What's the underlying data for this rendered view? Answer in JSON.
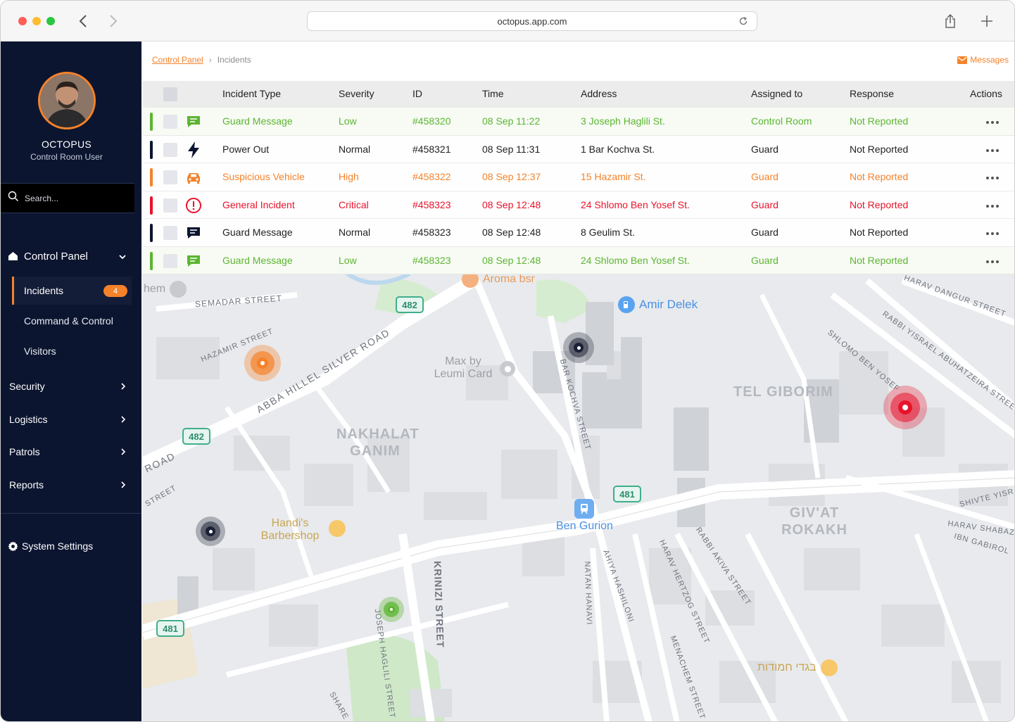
{
  "browser": {
    "url": "octopus.app.com"
  },
  "sidebar": {
    "user": {
      "name": "OCTOPUS",
      "role": "Control Room User"
    },
    "search_placeholder": "Search...",
    "control_panel": {
      "label": "Control Panel",
      "items": [
        {
          "label": "Incidents",
          "badge": "4",
          "active": true
        },
        {
          "label": "Command & Control"
        },
        {
          "label": "Visitors"
        }
      ]
    },
    "sections": [
      {
        "label": "Security"
      },
      {
        "label": "Logistics"
      },
      {
        "label": "Patrols"
      },
      {
        "label": "Reports"
      }
    ],
    "settings_label": "System Settings"
  },
  "breadcrumb": {
    "root": "Control Panel",
    "current": "Incidents"
  },
  "messages_label": "Messages",
  "table": {
    "columns": [
      "Incident Type",
      "Severity",
      "ID",
      "Time",
      "Address",
      "Assigned to",
      "Response",
      "Actions"
    ],
    "rows": [
      {
        "type": "Guard Message",
        "severity": "Low",
        "id": "#458320",
        "time": "08 Sep 11:22",
        "address": "3 Joseph Haglili St.",
        "assigned": "Control Room",
        "response": "Not Reported",
        "color": "#5cb531",
        "icon": "chat-icon"
      },
      {
        "type": "Power Out",
        "severity": "Normal",
        "id": "#458321",
        "time": "08 Sep 11:31",
        "address": "1 Bar Kochva St.",
        "assigned": "Guard",
        "response": "Not Reported",
        "color": "#0c1530",
        "icon": "lightning-icon"
      },
      {
        "type": "Suspicious Vehicle",
        "severity": "High",
        "id": "#458322",
        "time": "08 Sep 12:37",
        "address": "15 Hazamir St.",
        "assigned": "Guard",
        "response": "Not Reported",
        "color": "#f5822a",
        "icon": "car-icon"
      },
      {
        "type": "General Incident",
        "severity": "Critical",
        "id": "#458323",
        "time": "08 Sep 12:48",
        "address": "24 Shlomo Ben Yosef St.",
        "assigned": "Guard",
        "response": "Not Reported",
        "color": "#e8132b",
        "icon": "alert-icon"
      },
      {
        "type": "Guard Message",
        "severity": "Normal",
        "id": "#458323",
        "time": "08 Sep 12:48",
        "address": "8 Geulim St.",
        "assigned": "Guard",
        "response": "Not Reported",
        "color": "#0c1530",
        "icon": "chat-icon"
      },
      {
        "type": "Guard Message",
        "severity": "Low",
        "id": "#458323",
        "time": "08 Sep 12:48",
        "address": "24 Shlomo Ben Yosef St.",
        "assigned": "Guard",
        "response": "Not Reported",
        "color": "#5cb531",
        "icon": "chat-icon"
      }
    ]
  },
  "map": {
    "streets": [
      "SEMADAR STREET",
      "HAZAMIR STREET",
      "ABBA HILLEL SILVER ROAD",
      "BAR KOCHVA STREET",
      "KRINIZI STREET",
      "JOSEPH HAGLILI STREET",
      "NATAN HANAVI",
      "AHIYA HASHILONI",
      "HARAV HERTZOG STREET",
      "RABBI AKIVA STREET",
      "MENACHEM STREET",
      "SHLOMO BEN YOSEF",
      "RABBI YISRAEL ABUHATZEIRA STREET",
      "HARAV DANGUR STREET",
      "SHIVTE YISRAEL",
      "HARAV SHABAZI",
      "IBN GABIROL",
      "ROAD",
      "STREET",
      "SHARE"
    ],
    "areas": [
      "NAKHALAT GANIM",
      "TEL GIBORIM",
      "GIV'AT ROKAKH"
    ],
    "pois": [
      "Aroma bsr",
      "Amir Delek",
      "Max by Leumi Card",
      "Handi's Barbershop",
      "Ben Gurion",
      "בגדי חמודות",
      "hem"
    ],
    "road_numbers": [
      "482",
      "482",
      "481",
      "481"
    ]
  }
}
